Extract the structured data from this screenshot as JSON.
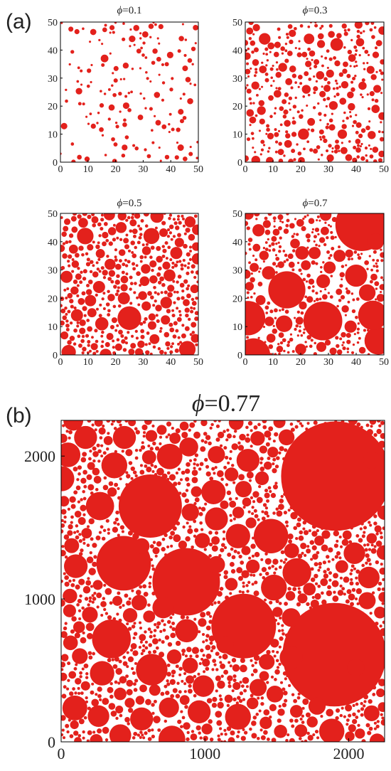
{
  "figure": {
    "panel_a_label": "(a)",
    "panel_b_label": "(b)"
  },
  "chart_data": [
    {
      "type": "scatter",
      "panel": "a",
      "title_symbol": "ϕ",
      "title_value": "=0.1",
      "xlim": [
        0,
        50
      ],
      "ylim": [
        0,
        50
      ],
      "xticks": [
        "0",
        "10",
        "20",
        "30",
        "40",
        "50"
      ],
      "yticks": [
        "0",
        "10",
        "20",
        "30",
        "40",
        "50"
      ],
      "marker_color": "#e3211c",
      "area_fraction": 0.1,
      "radius_range": [
        0.4,
        1.2
      ],
      "large_circles": [
        [
          16,
          37,
          1.4
        ],
        [
          26,
          44,
          1.2
        ],
        [
          35,
          24,
          1.1
        ],
        [
          49,
          48,
          1.0
        ],
        [
          29,
          16,
          1.0
        ]
      ]
    },
    {
      "type": "scatter",
      "panel": "a",
      "title_symbol": "ϕ",
      "title_value": "=0.3",
      "xlim": [
        0,
        50
      ],
      "ylim": [
        0,
        50
      ],
      "xticks": [
        "0",
        "10",
        "20",
        "30",
        "40",
        "50"
      ],
      "yticks": [
        "0",
        "10",
        "20",
        "30",
        "40",
        "50"
      ],
      "marker_color": "#e3211c",
      "area_fraction": 0.3,
      "radius_range": [
        0.4,
        1.6
      ],
      "large_circles": [
        [
          7,
          44,
          2.1
        ],
        [
          33,
          42,
          2.3
        ],
        [
          23,
          44,
          1.9
        ],
        [
          21,
          10,
          2.0
        ],
        [
          35,
          10,
          1.7
        ],
        [
          22,
          26,
          1.6
        ],
        [
          47,
          19,
          1.5
        ],
        [
          27,
          31,
          1.5
        ]
      ]
    },
    {
      "type": "scatter",
      "panel": "a",
      "title_symbol": "ϕ",
      "title_value": "=0.5",
      "xlim": [
        0,
        50
      ],
      "ylim": [
        0,
        50
      ],
      "xticks": [
        "0",
        "10",
        "20",
        "30",
        "40",
        "50"
      ],
      "yticks": [
        "0",
        "10",
        "20",
        "30",
        "40",
        "50"
      ],
      "marker_color": "#e3211c",
      "area_fraction": 0.5,
      "radius_range": [
        0.5,
        2.2
      ],
      "large_circles": [
        [
          25,
          13,
          4.3
        ],
        [
          33,
          42,
          2.9
        ],
        [
          9,
          42,
          3.0
        ],
        [
          23,
          20,
          2.2
        ],
        [
          15,
          11,
          2.4
        ],
        [
          46,
          2,
          3.0
        ],
        [
          3,
          1,
          2.6
        ],
        [
          14,
          24,
          2.2
        ],
        [
          42,
          36,
          2.2
        ],
        [
          18,
          32,
          2.0
        ],
        [
          6,
          14,
          2.2
        ],
        [
          47,
          47,
          2.0
        ],
        [
          35,
          49,
          2.4
        ],
        [
          22,
          45,
          2.0
        ]
      ]
    },
    {
      "type": "scatter",
      "panel": "a",
      "title_symbol": "ϕ",
      "title_value": "=0.7",
      "xlim": [
        0,
        50
      ],
      "ylim": [
        0,
        50
      ],
      "xticks": [
        "0",
        "10",
        "20",
        "30",
        "40",
        "50"
      ],
      "yticks": [
        "0",
        "10",
        "20",
        "30",
        "40",
        "50"
      ],
      "marker_color": "#e3211c",
      "area_fraction": 0.7,
      "radius_range": [
        0.4,
        2.5
      ],
      "large_circles": [
        [
          42,
          46,
          9.5
        ],
        [
          28,
          12,
          7.0
        ],
        [
          15,
          23,
          6.7
        ],
        [
          1,
          13,
          6.2
        ],
        [
          3,
          0,
          6.0
        ],
        [
          48,
          5,
          5.0
        ],
        [
          46,
          14,
          5.3
        ],
        [
          40,
          28,
          4.0
        ],
        [
          47,
          40,
          3.0
        ],
        [
          34,
          35,
          2.2
        ],
        [
          44,
          22,
          3.0
        ],
        [
          14,
          11,
          3.0
        ],
        [
          25,
          36,
          2.2
        ],
        [
          38,
          10,
          2.2
        ],
        [
          20,
          2,
          2.0
        ]
      ]
    },
    {
      "type": "scatter",
      "panel": "b",
      "title_symbol": "ϕ",
      "title_value": "=0.77",
      "xlim": [
        0,
        2250
      ],
      "ylim": [
        0,
        2250
      ],
      "xticks": [
        "0",
        "1000",
        "2000"
      ],
      "yticks": [
        "0",
        "1000",
        "2000"
      ],
      "marker_color": "#e3211c",
      "area_fraction": 0.77,
      "radius_range": [
        10,
        100
      ],
      "large_circles": [
        [
          1910,
          1860,
          380
        ],
        [
          1900,
          610,
          360
        ],
        [
          870,
          1120,
          235
        ],
        [
          1270,
          810,
          225
        ],
        [
          620,
          1650,
          220
        ],
        [
          435,
          1250,
          190
        ],
        [
          350,
          720,
          135
        ],
        [
          630,
          505,
          110
        ],
        [
          1460,
          1440,
          120
        ],
        [
          1640,
          1185,
          100
        ],
        [
          1480,
          1080,
          90
        ],
        [
          370,
          1935,
          90
        ],
        [
          170,
          2130,
          80
        ],
        [
          440,
          2130,
          80
        ],
        [
          285,
          480,
          85
        ],
        [
          260,
          180,
          75
        ],
        [
          560,
          160,
          80
        ],
        [
          1230,
          175,
          90
        ],
        [
          960,
          210,
          80
        ],
        [
          1230,
          1440,
          85
        ],
        [
          1300,
          1970,
          80
        ],
        [
          990,
          390,
          75
        ],
        [
          710,
          940,
          75
        ],
        [
          1080,
          1560,
          80
        ],
        [
          750,
          240,
          70
        ],
        [
          1600,
          590,
          80
        ],
        [
          2140,
          1150,
          75
        ],
        [
          2040,
          1320,
          75
        ],
        [
          2050,
          520,
          60
        ],
        [
          2160,
          1970,
          60
        ],
        [
          1780,
          250,
          60
        ],
        [
          1080,
          2010,
          60
        ],
        [
          130,
          600,
          55
        ],
        [
          200,
          890,
          55
        ],
        [
          1140,
          680,
          60
        ],
        [
          1080,
          1240,
          60
        ],
        [
          1600,
          870,
          65
        ],
        [
          560,
          1370,
          55
        ],
        [
          2160,
          200,
          55
        ],
        [
          1430,
          560,
          55
        ],
        [
          1370,
          380,
          60
        ]
      ]
    }
  ]
}
